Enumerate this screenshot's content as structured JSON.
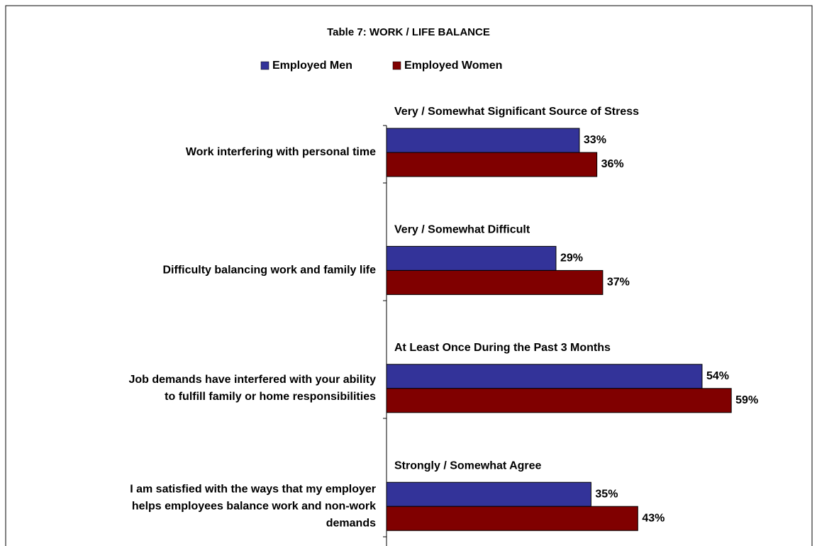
{
  "chart_data": {
    "type": "bar",
    "orientation": "horizontal",
    "title": "Table 7: WORK / LIFE BALANCE",
    "categories": [
      [
        "Work  interfering with personal time"
      ],
      [
        "Difficulty balancing work and family life"
      ],
      [
        "Job demands have interfered with your ability",
        "to fulfill family or home responsibilities"
      ],
      [
        "I am satisfied with the ways that my employer",
        "helps employees balance work and non-work",
        "demands"
      ]
    ],
    "group_labels": [
      "Very / Somewhat Significant Source of Stress",
      "Very / Somewhat Difficult",
      "At Least Once During the Past 3 Months",
      "Strongly / Somewhat Agree"
    ],
    "series": [
      {
        "name": "Employed Men",
        "color": "#333399",
        "values": [
          33,
          29,
          54,
          35
        ],
        "value_labels": [
          "33%",
          "29%",
          "54%",
          "35%"
        ]
      },
      {
        "name": "Employed Women",
        "color": "#800000",
        "values": [
          36,
          37,
          59,
          43
        ],
        "value_labels": [
          "36%",
          "37%",
          "59%",
          "43%"
        ]
      }
    ],
    "legend": "top"
  }
}
